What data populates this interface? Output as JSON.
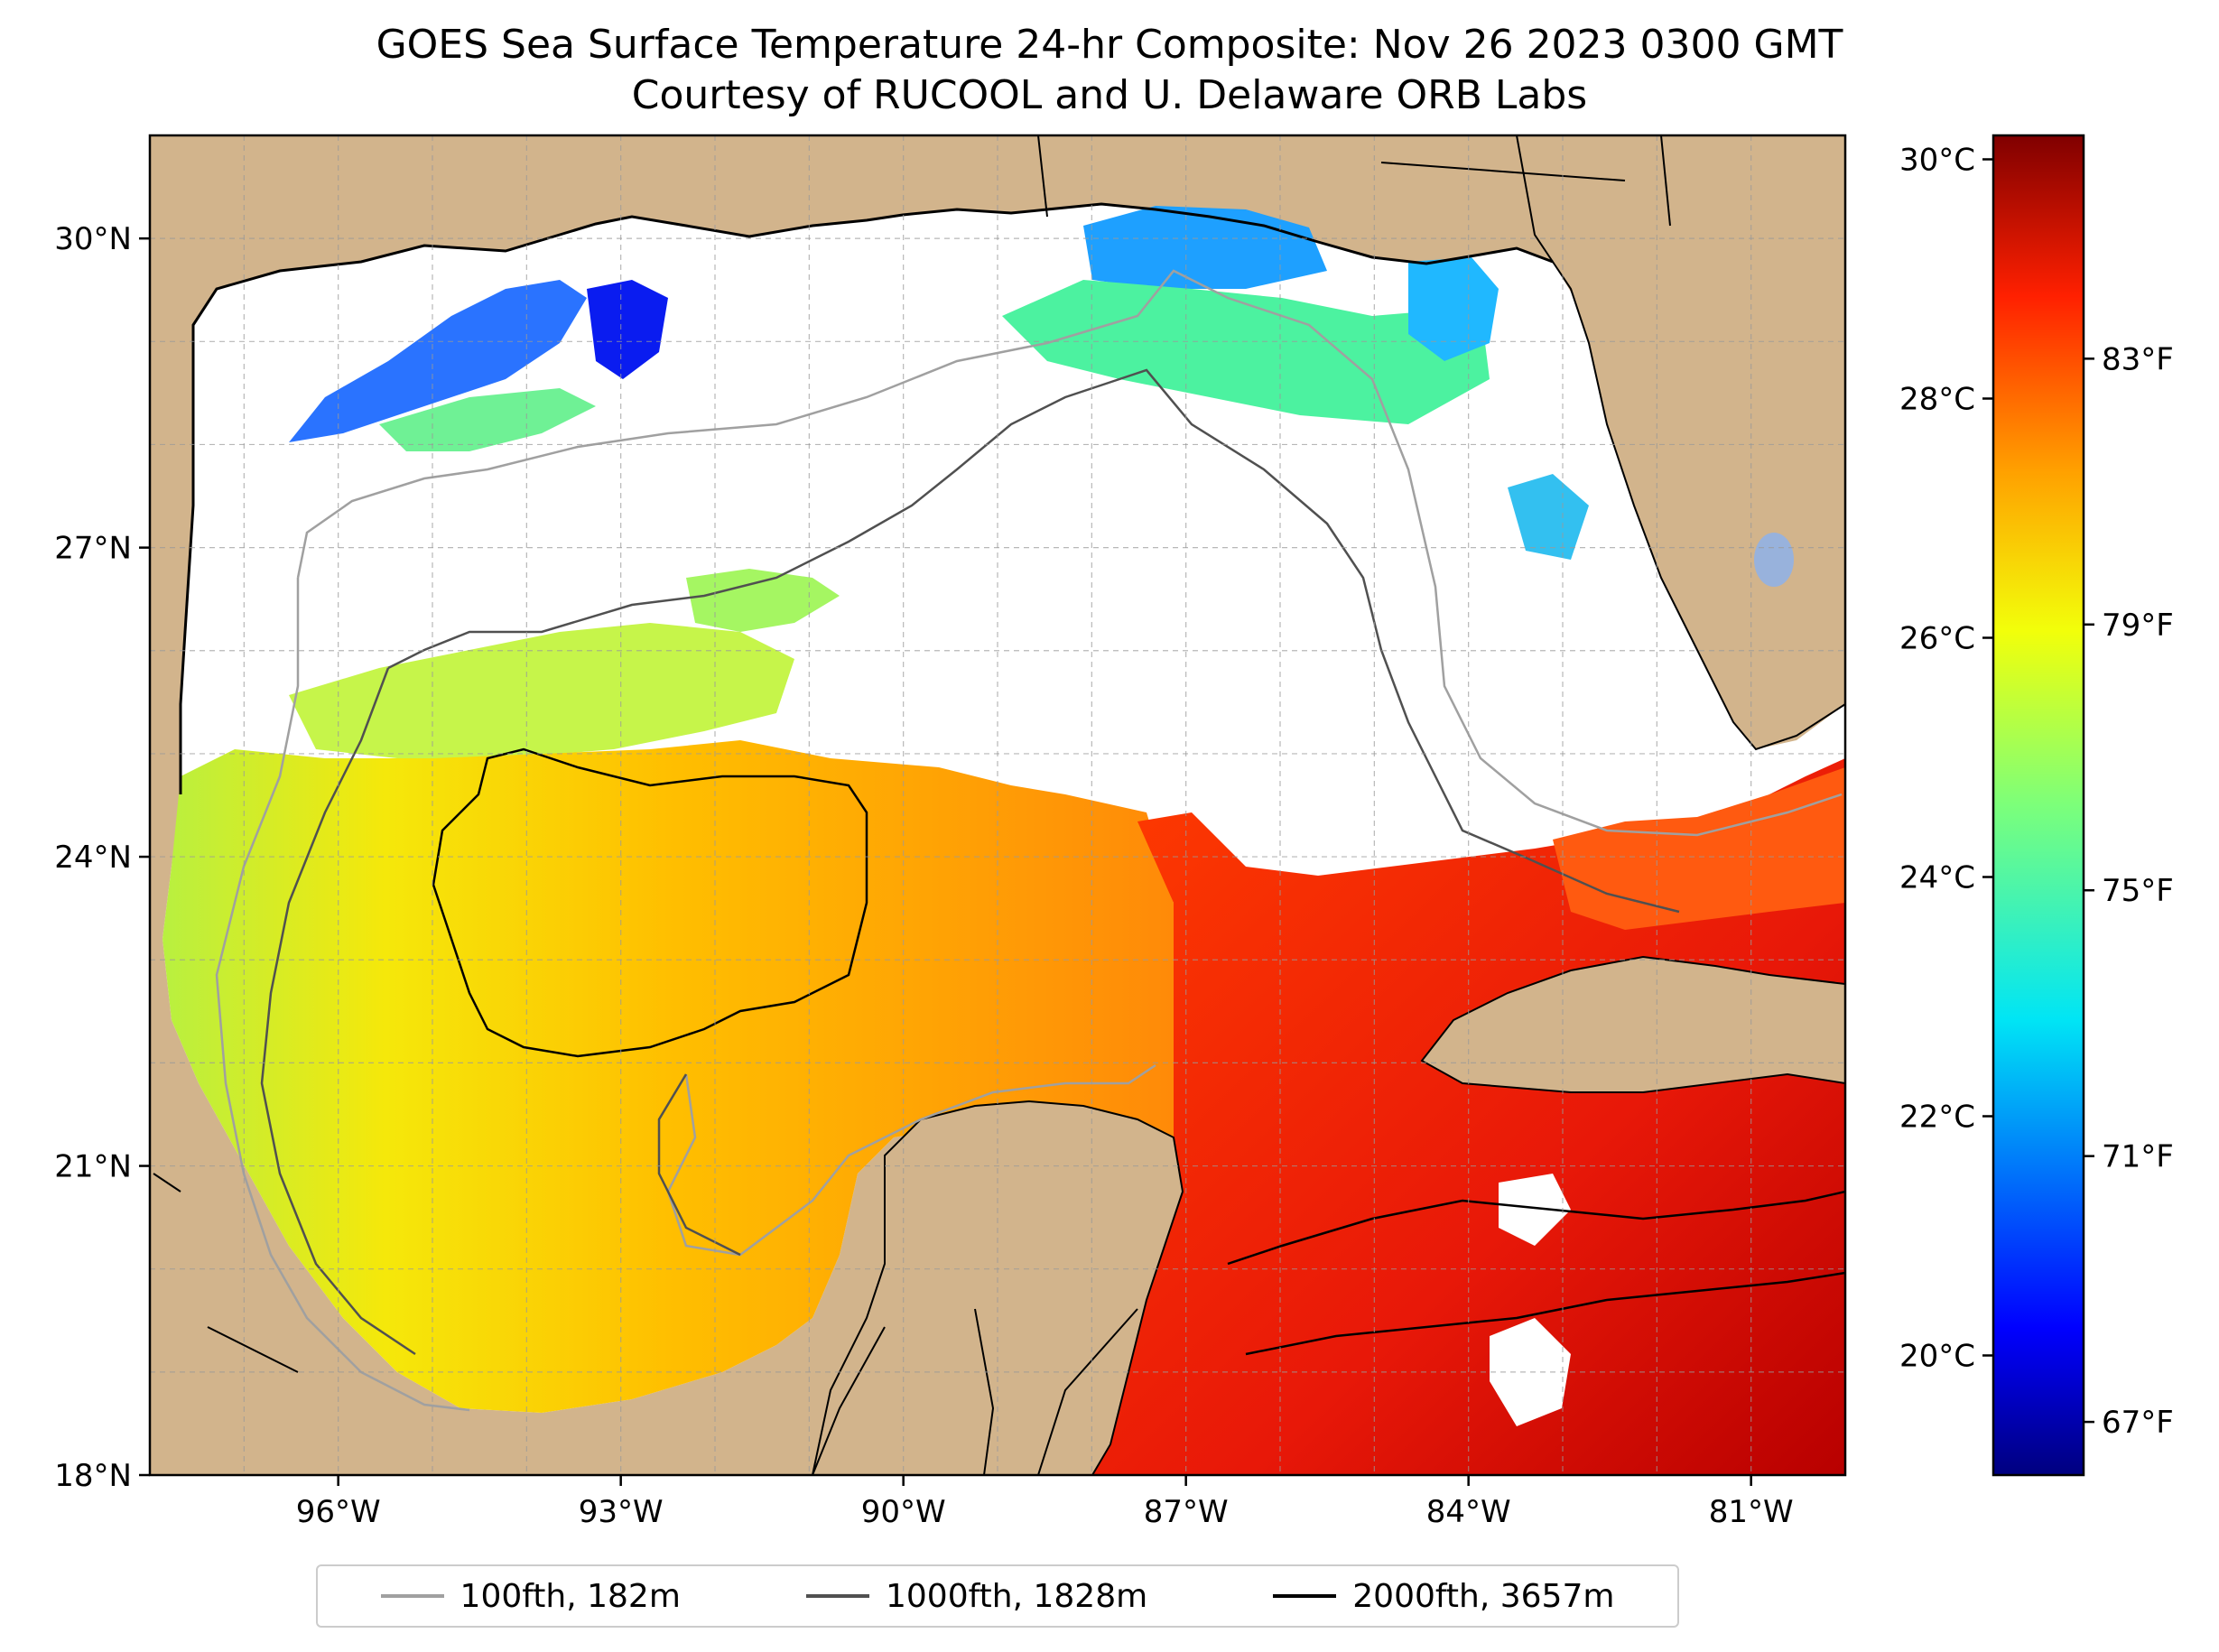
{
  "title": {
    "line1": "GOES Sea Surface Temperature 24-hr Composite: Nov 26 2023 0300 GMT",
    "line2": "Courtesy of RUCOOL and U. Delaware ORB Labs"
  },
  "map": {
    "lon_range": [
      -98.0,
      -80.0
    ],
    "lat_range": [
      18.0,
      31.0
    ],
    "lat_ticks": [
      {
        "value": 30,
        "label": "30°N"
      },
      {
        "value": 27,
        "label": "27°N"
      },
      {
        "value": 24,
        "label": "24°N"
      },
      {
        "value": 21,
        "label": "21°N"
      },
      {
        "value": 18,
        "label": "18°N"
      }
    ],
    "lon_ticks": [
      {
        "value": -96,
        "label": "96°W"
      },
      {
        "value": -93,
        "label": "93°W"
      },
      {
        "value": -90,
        "label": "90°W"
      },
      {
        "value": -87,
        "label": "87°W"
      },
      {
        "value": -84,
        "label": "84°W"
      },
      {
        "value": -81,
        "label": "81°W"
      }
    ],
    "gridlines": "dashed",
    "land_color": "#d2b48c",
    "lake_color": "#98b2dc",
    "no_data_color": "#ffffff"
  },
  "colorbar": {
    "range_c": [
      19.0,
      30.2
    ],
    "colormap": "jet",
    "celsius_ticks": [
      {
        "value": 30,
        "label": "30°C"
      },
      {
        "value": 28,
        "label": "28°C"
      },
      {
        "value": 26,
        "label": "26°C"
      },
      {
        "value": 24,
        "label": "24°C"
      },
      {
        "value": 22,
        "label": "22°C"
      },
      {
        "value": 20,
        "label": "20°C"
      }
    ],
    "fahrenheit_ticks": [
      {
        "value": 83,
        "label": "83°F"
      },
      {
        "value": 79,
        "label": "79°F"
      },
      {
        "value": 75,
        "label": "75°F"
      },
      {
        "value": 71,
        "label": "71°F"
      },
      {
        "value": 67,
        "label": "67°F"
      }
    ]
  },
  "legend": {
    "items": [
      {
        "label": "100fth, 182m",
        "color": "#a0a0a0"
      },
      {
        "label": "1000fth, 1828m",
        "color": "#505050"
      },
      {
        "label": "2000fth, 3657m",
        "color": "#000000"
      }
    ]
  }
}
